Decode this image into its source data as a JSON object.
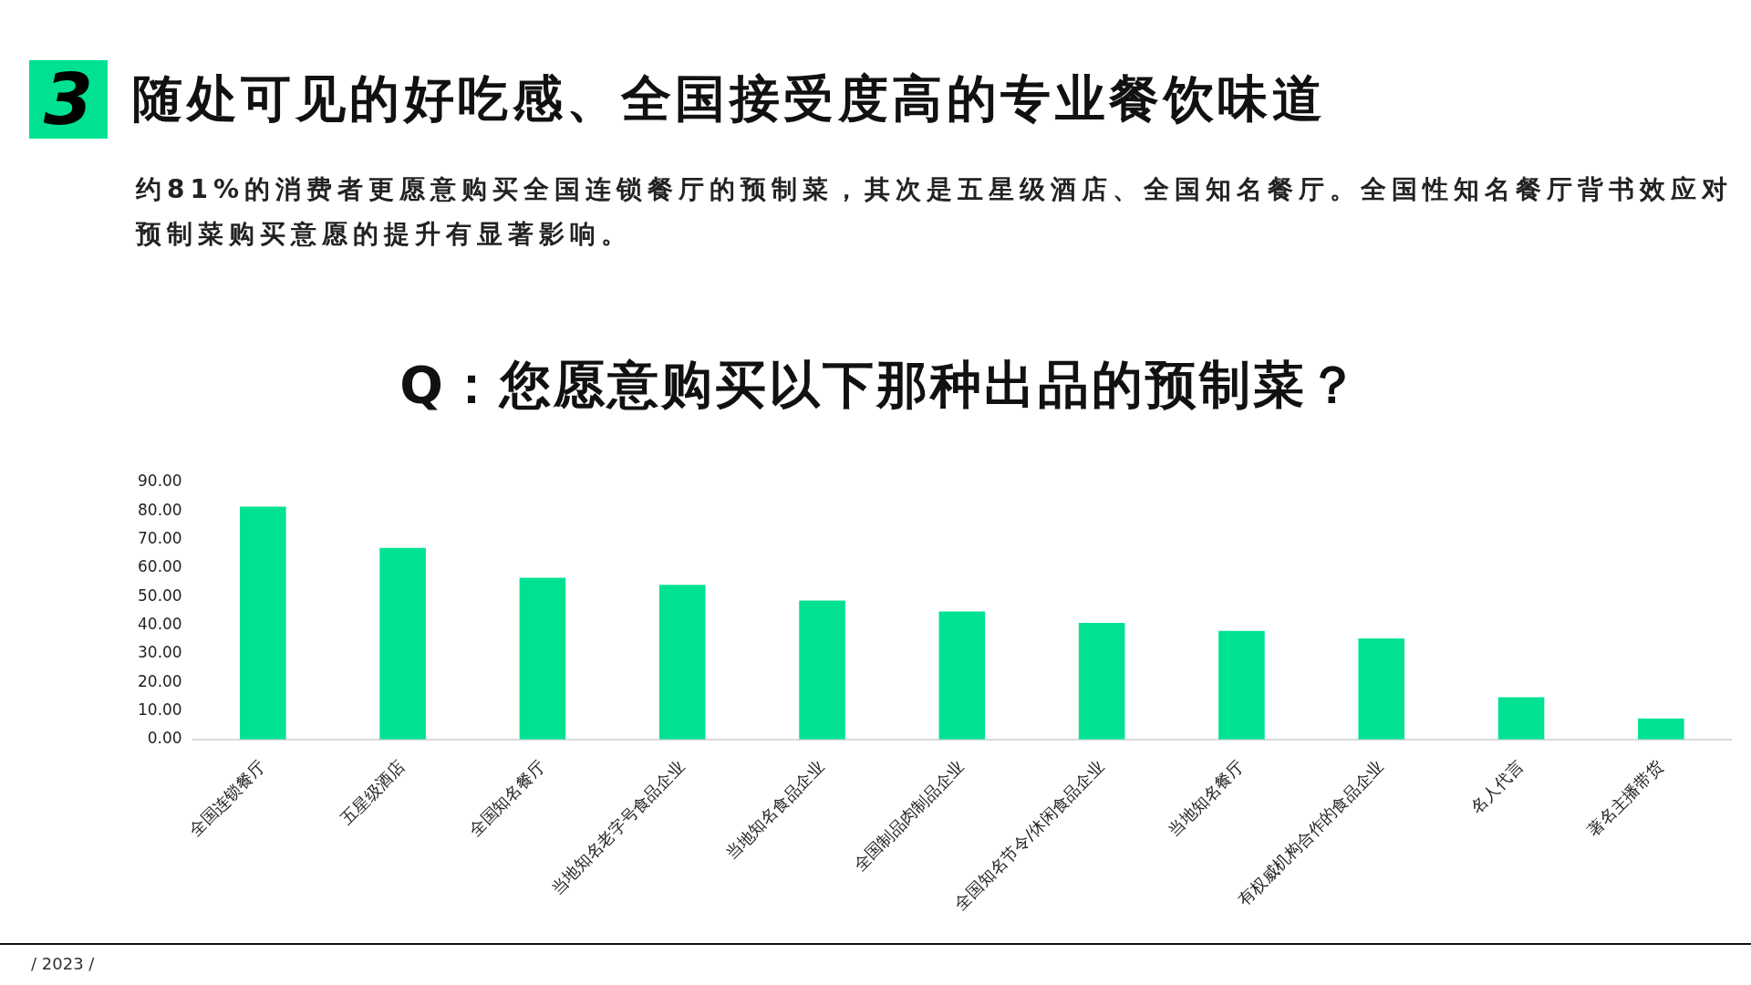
{
  "chart_data": {
    "type": "bar",
    "title": "随处可见的好吃感、全国接受度高的专业餐饮味道",
    "subtitle": "约81%的消费者更愿意购买全国连锁餐厅的预制菜，其次是五星级酒店、全国知名餐厅。全国性知名餐厅背书效应对预制菜购买意愿的提升有显著影响。",
    "annotations": [
      "3",
      "Q：您愿意购买以下那种出品的预制菜？",
      "/ 2023 /"
    ],
    "categories": [
      "全国连锁餐厅",
      "五星级酒店",
      "全国知名餐厅",
      "当地知名老字号食品企业",
      "当地知名食品企业",
      "全国制品肉制品企业",
      "全国知名节令/休闲食品企业",
      "当地知名餐厅",
      "有权威机构合作的食品企业",
      "名人代言",
      "著名主播带货"
    ],
    "values": [
      81.5,
      67.1,
      56.6,
      54.1,
      48.6,
      44.8,
      40.8,
      38.0,
      35.4,
      14.8,
      7.3
    ],
    "color": "#00e291",
    "ylim": [
      0,
      90
    ],
    "yticks": [
      {
        "value": 0,
        "label": "0.00"
      },
      {
        "value": 10,
        "label": "10.00"
      },
      {
        "value": 20,
        "label": "20.00"
      },
      {
        "value": 30,
        "label": "30.00"
      },
      {
        "value": 40,
        "label": "40.00"
      },
      {
        "value": 50,
        "label": "50.00"
      },
      {
        "value": 60,
        "label": "60.00"
      },
      {
        "value": 70,
        "label": "70.00"
      },
      {
        "value": 80,
        "label": "80.00"
      },
      {
        "value": 90,
        "label": "90.00"
      }
    ]
  }
}
